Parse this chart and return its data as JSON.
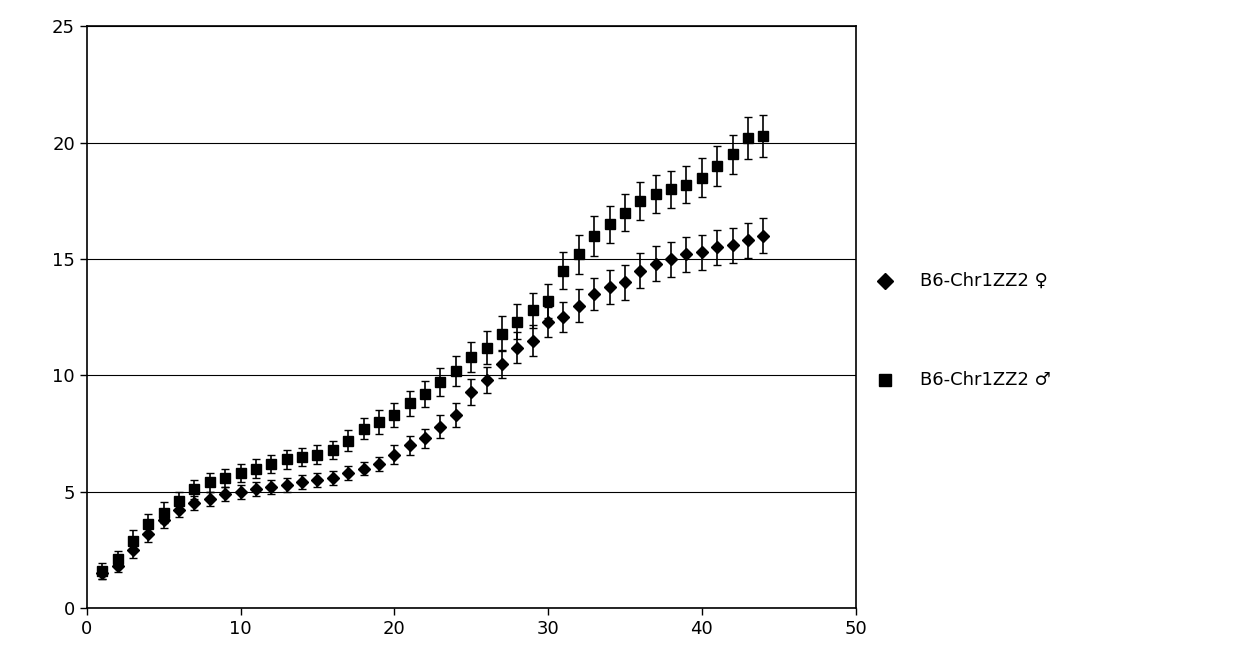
{
  "x": [
    1,
    2,
    3,
    4,
    5,
    6,
    7,
    8,
    9,
    10,
    11,
    12,
    13,
    14,
    15,
    16,
    17,
    18,
    19,
    20,
    21,
    22,
    23,
    24,
    25,
    26,
    27,
    28,
    29,
    30,
    31,
    32,
    33,
    34,
    35,
    36,
    37,
    38,
    39,
    40,
    41,
    42,
    43,
    44
  ],
  "female_y": [
    1.5,
    1.8,
    2.5,
    3.2,
    3.8,
    4.2,
    4.5,
    4.7,
    4.9,
    5.0,
    5.1,
    5.2,
    5.3,
    5.4,
    5.5,
    5.6,
    5.8,
    6.0,
    6.2,
    6.6,
    7.0,
    7.3,
    7.8,
    8.3,
    9.3,
    9.8,
    10.5,
    11.2,
    11.5,
    12.3,
    12.5,
    13.0,
    13.5,
    13.8,
    14.0,
    14.5,
    14.8,
    15.0,
    15.2,
    15.3,
    15.5,
    15.6,
    15.8,
    16.0
  ],
  "female_err": [
    0.25,
    0.25,
    0.35,
    0.35,
    0.35,
    0.3,
    0.3,
    0.3,
    0.3,
    0.3,
    0.3,
    0.3,
    0.3,
    0.3,
    0.3,
    0.3,
    0.3,
    0.3,
    0.3,
    0.4,
    0.4,
    0.4,
    0.5,
    0.5,
    0.55,
    0.55,
    0.6,
    0.65,
    0.65,
    0.65,
    0.65,
    0.7,
    0.7,
    0.75,
    0.75,
    0.75,
    0.75,
    0.75,
    0.75,
    0.75,
    0.75,
    0.75,
    0.75,
    0.75
  ],
  "male_y": [
    1.6,
    2.1,
    2.9,
    3.6,
    4.1,
    4.6,
    5.1,
    5.4,
    5.6,
    5.8,
    6.0,
    6.2,
    6.4,
    6.5,
    6.6,
    6.8,
    7.2,
    7.7,
    8.0,
    8.3,
    8.8,
    9.2,
    9.7,
    10.2,
    10.8,
    11.2,
    11.8,
    12.3,
    12.8,
    13.2,
    14.5,
    15.2,
    16.0,
    16.5,
    17.0,
    17.5,
    17.8,
    18.0,
    18.2,
    18.5,
    19.0,
    19.5,
    20.2,
    20.3
  ],
  "male_err": [
    0.35,
    0.35,
    0.45,
    0.45,
    0.45,
    0.4,
    0.4,
    0.4,
    0.4,
    0.4,
    0.4,
    0.4,
    0.4,
    0.4,
    0.4,
    0.4,
    0.45,
    0.45,
    0.5,
    0.5,
    0.55,
    0.55,
    0.6,
    0.65,
    0.65,
    0.7,
    0.75,
    0.75,
    0.75,
    0.75,
    0.8,
    0.85,
    0.85,
    0.8,
    0.8,
    0.8,
    0.8,
    0.8,
    0.8,
    0.85,
    0.85,
    0.85,
    0.9,
    0.9
  ],
  "legend_female": "B6-Chr1ZZ2 ♀",
  "legend_male": "B6-Chr1ZZ2 ♂",
  "xlim": [
    0,
    50
  ],
  "ylim": [
    0,
    25
  ],
  "xticks": [
    0,
    10,
    20,
    30,
    40,
    50
  ],
  "yticks": [
    0,
    5,
    10,
    15,
    20,
    25
  ],
  "background_color": "#ffffff",
  "line_color": "#000000",
  "marker_female": "D",
  "marker_male": "s",
  "markersize_female": 6,
  "markersize_male": 7,
  "capsize": 3,
  "elinewidth": 1.2,
  "linewidth": 0
}
